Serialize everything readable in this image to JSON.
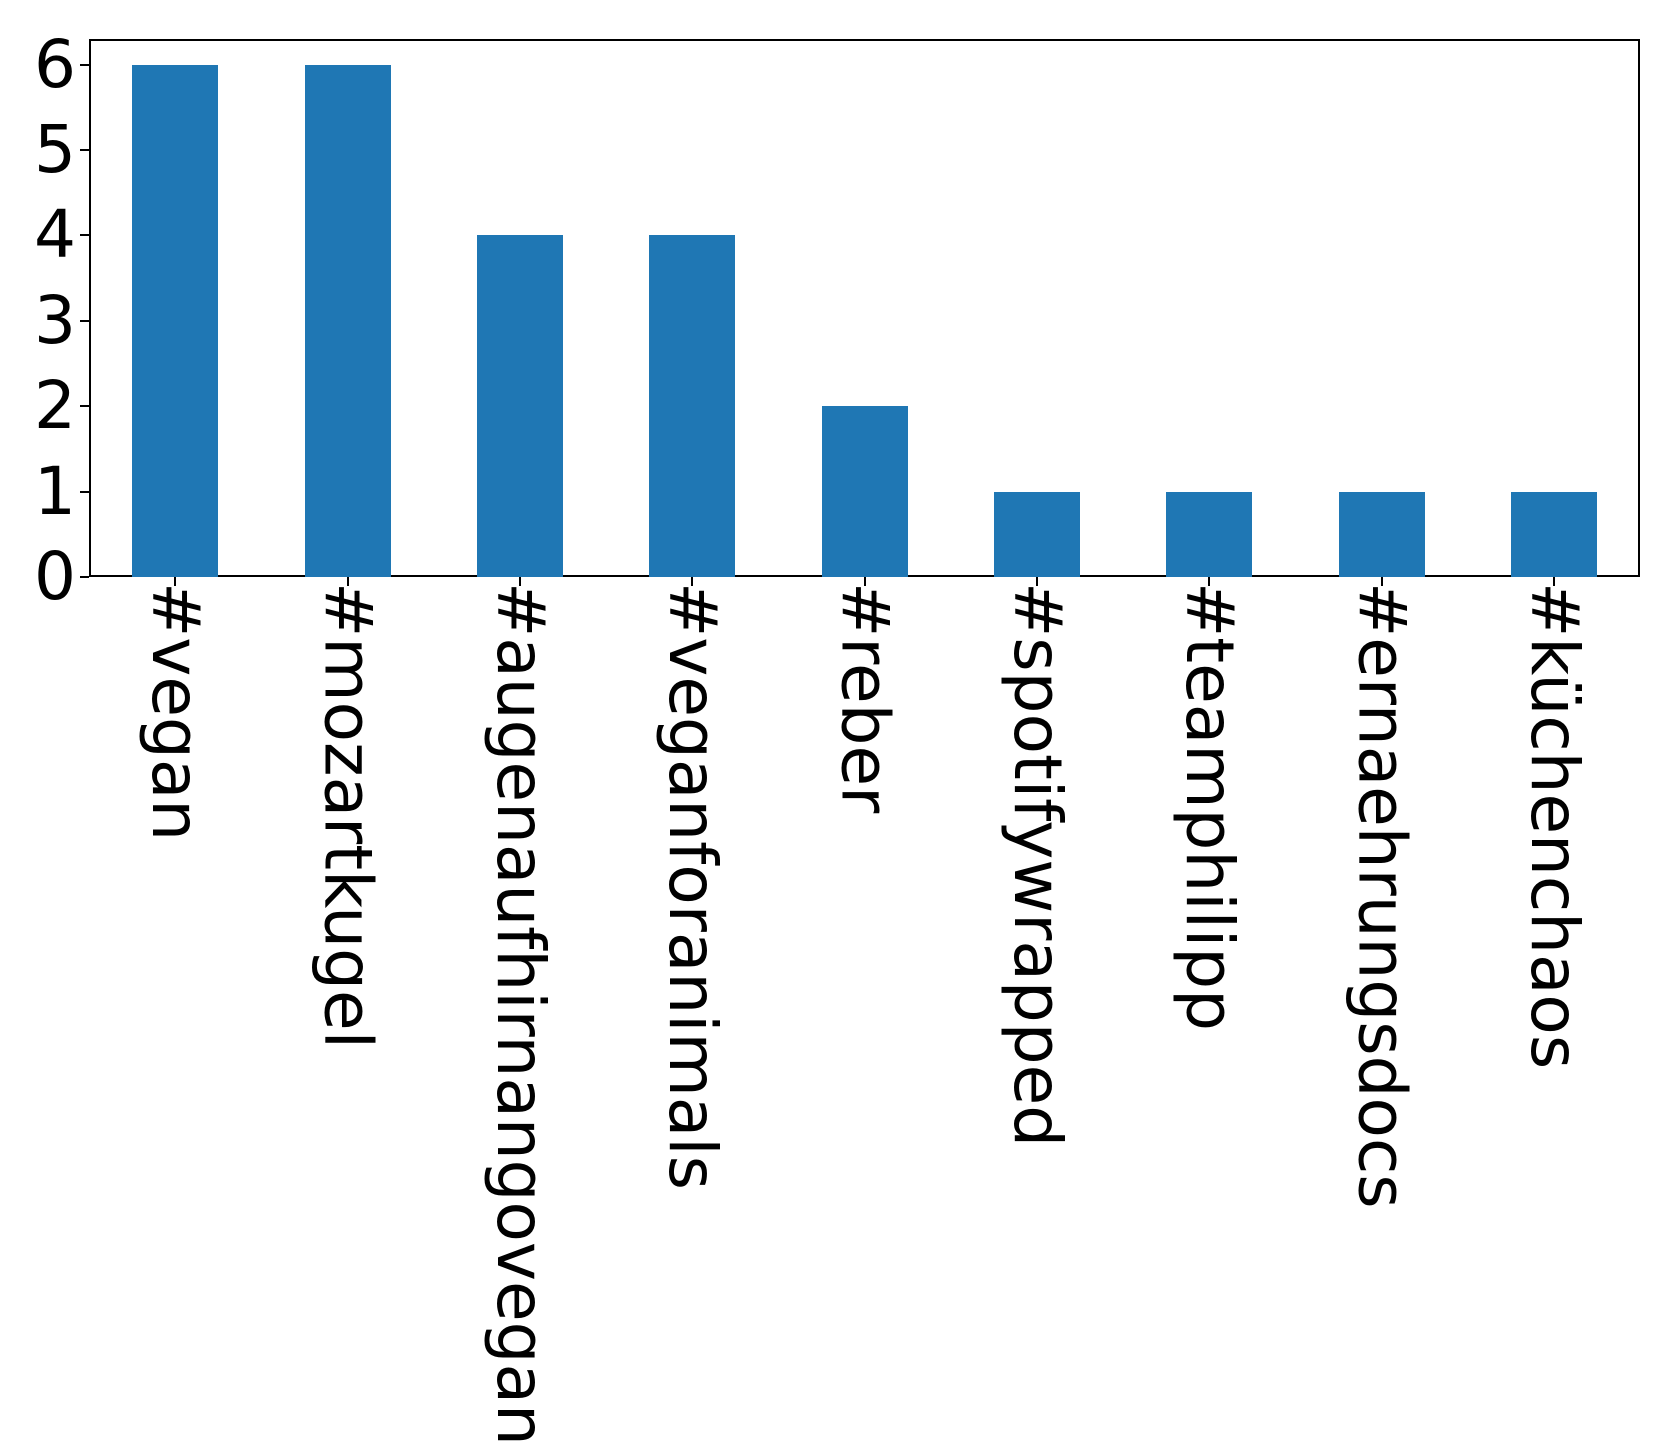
{
  "chart_data": {
    "type": "bar",
    "categories": [
      "#vegan",
      "#mozartkugel",
      "#augenaufhirnangovegan",
      "#veganforanimals",
      "#reber",
      "#spotifywrapped",
      "#teamphilipp",
      "#ernaehrungsdocs",
      "#küchenchaos"
    ],
    "values": [
      6,
      6,
      4,
      4,
      2,
      1,
      1,
      1,
      1
    ],
    "title": "",
    "xlabel": "",
    "ylabel": "",
    "yticks": [
      0,
      1,
      2,
      3,
      4,
      5,
      6
    ],
    "ylim": [
      0,
      6.3
    ],
    "x_tick_rotation": 90,
    "grid": false,
    "legend_position": "none",
    "bar_color": "#1f77b4",
    "axis_color": "#000000",
    "text_color": "#000000",
    "background_color": "#ffffff"
  }
}
